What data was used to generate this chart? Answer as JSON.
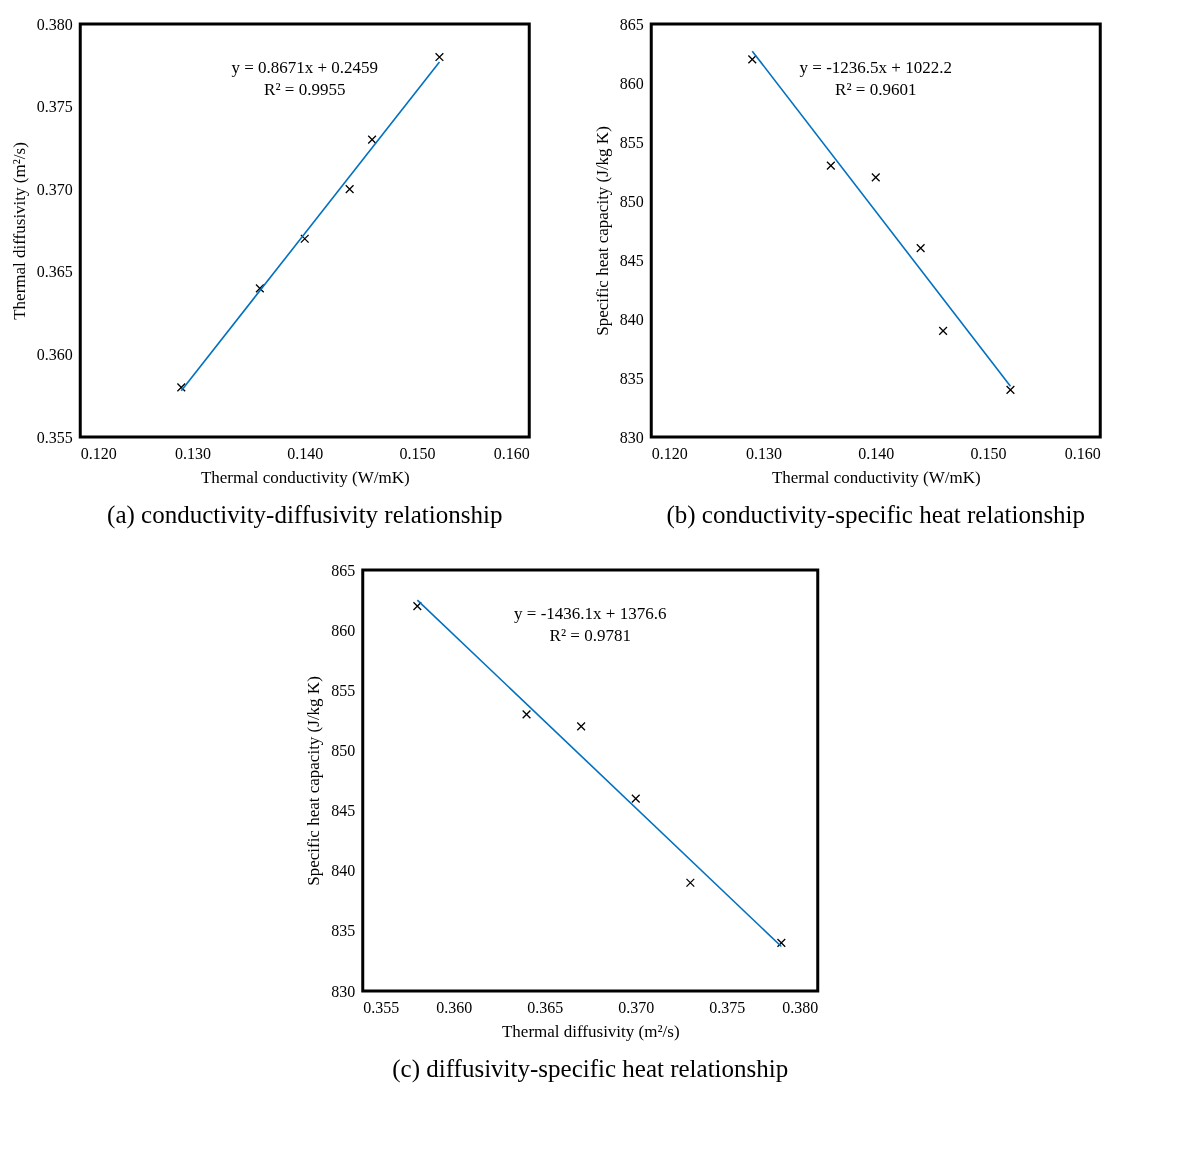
{
  "chart_data": [
    {
      "type": "scatter",
      "xlabel": "Thermal conductivity (W/mK)",
      "ylabel": "Thermal diffusivity (m²/s)",
      "xlim": [
        0.12,
        0.16
      ],
      "xticks": [
        {
          "value": 0.12,
          "label": "0.120"
        },
        {
          "value": 0.13,
          "label": "0.130"
        },
        {
          "value": 0.14,
          "label": "0.140"
        },
        {
          "value": 0.15,
          "label": "0.150"
        },
        {
          "value": 0.16,
          "label": "0.160"
        }
      ],
      "ylim": [
        0.355,
        0.38
      ],
      "yticks": [
        0.355,
        {
          "value": 0.36,
          "label": "0.360"
        },
        0.365,
        {
          "value": 0.37,
          "label": "0.370"
        },
        0.375,
        {
          "value": 0.38,
          "label": "0.380"
        }
      ],
      "grid": false,
      "series": [
        {
          "marker": "cross",
          "color": "#000000",
          "x": [
            0.129,
            0.136,
            0.14,
            0.144,
            0.146,
            0.152
          ],
          "values": [
            0.358,
            0.364,
            0.367,
            0.37,
            0.373,
            0.378
          ]
        },
        {
          "type": "line",
          "color": "#0070c0",
          "x": [
            0.129,
            0.152
          ],
          "values": [
            0.3578,
            0.3777
          ]
        }
      ],
      "annotations": [
        "y = 0.8671x + 0.2459",
        "R² = 0.9955",
        "(a) conductivity-diffusivity relationship"
      ]
    },
    {
      "type": "scatter",
      "xlabel": "Thermal conductivity (W/mK)",
      "ylabel": "Specific heat capacity (J/kg K)",
      "xlim": [
        0.12,
        0.16
      ],
      "xticks": [
        {
          "value": 0.12,
          "label": "0.120"
        },
        {
          "value": 0.13,
          "label": "0.130"
        },
        {
          "value": 0.14,
          "label": "0.140"
        },
        {
          "value": 0.15,
          "label": "0.150"
        },
        {
          "value": 0.16,
          "label": "0.160"
        }
      ],
      "ylim": [
        830,
        865
      ],
      "yticks": [
        830,
        835,
        840,
        845,
        850,
        855,
        860,
        865
      ],
      "grid": false,
      "series": [
        {
          "marker": "cross",
          "color": "#000000",
          "x": [
            0.129,
            0.136,
            0.14,
            0.144,
            0.146,
            0.152
          ],
          "values": [
            862,
            853,
            852,
            846,
            839,
            834
          ]
        },
        {
          "type": "line",
          "color": "#0070c0",
          "x": [
            0.129,
            0.152
          ],
          "values": [
            862.7,
            834.3
          ]
        }
      ],
      "annotations": [
        "y = -1236.5x + 1022.2",
        "R² = 0.9601",
        "(b) conductivity-specific heat relationship"
      ]
    },
    {
      "type": "scatter",
      "xlabel": "Thermal diffusivity (m²/s)",
      "ylabel": "Specific heat capacity (J/kg K)",
      "xlim": [
        0.355,
        0.38
      ],
      "xticks": [
        0.355,
        {
          "value": 0.36,
          "label": "0.360"
        },
        0.365,
        {
          "value": 0.37,
          "label": "0.370"
        },
        0.375,
        {
          "value": 0.38,
          "label": "0.380"
        }
      ],
      "ylim": [
        830,
        865
      ],
      "yticks": [
        830,
        835,
        840,
        845,
        850,
        855,
        860,
        865
      ],
      "grid": false,
      "series": [
        {
          "marker": "cross",
          "color": "#000000",
          "x": [
            0.358,
            0.364,
            0.367,
            0.37,
            0.373,
            0.378
          ],
          "values": [
            862,
            853,
            852,
            846,
            839,
            834
          ]
        },
        {
          "type": "line",
          "color": "#0070c0",
          "x": [
            0.358,
            0.378
          ],
          "values": [
            862.5,
            833.7
          ]
        }
      ],
      "annotations": [
        "y = -1436.1x + 1376.6",
        "R² = 0.9781",
        "(c) diffusivity-specific heat relationship"
      ]
    }
  ]
}
